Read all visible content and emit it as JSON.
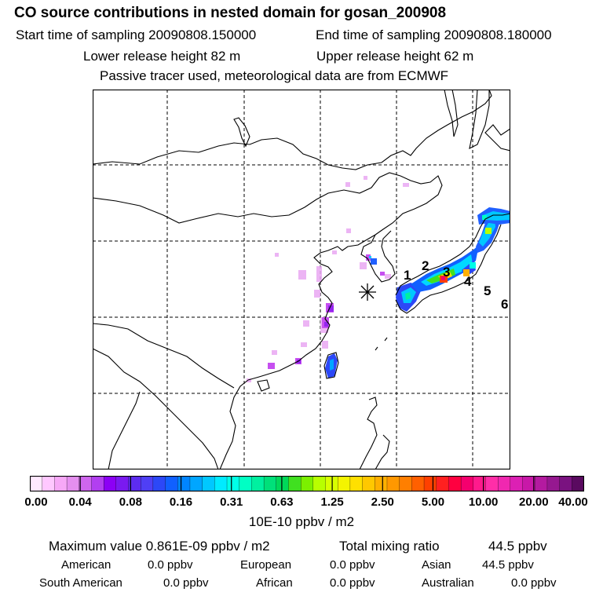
{
  "header": {
    "title": "CO  source contributions in nested domain for gosan_200908",
    "start_label": "Start time of sampling 20090808.150000",
    "end_label": "End time of sampling 20090808.180000",
    "lower_label": "Lower release height   82 m",
    "upper_label": "Upper release height   62 m",
    "tracer_note": "Passive tracer used, meteorological data are from ECMWF"
  },
  "map": {
    "receptor_marker": "asterisk-icon",
    "region_labels": [
      "1",
      "2",
      "3",
      "4",
      "5",
      "6"
    ]
  },
  "colorbar": {
    "tick_labels": [
      "0.00",
      "0.04",
      "0.08",
      "0.16",
      "0.31",
      "0.63",
      "1.25",
      "2.50",
      "5.00",
      "10.00",
      "20.00",
      "40.00"
    ],
    "colors": [
      "#ffe9ff",
      "#ffc8ff",
      "#f7a8f7",
      "#e58fef",
      "#cf66ee",
      "#b23ff0",
      "#8c00f5",
      "#7a1af0",
      "#5d2cf0",
      "#4f3ff5",
      "#2c48f7",
      "#1060ff",
      "#0085ff",
      "#00a6ff",
      "#00c8ff",
      "#00ebff",
      "#00ffe8",
      "#00ffc4",
      "#00f0a0",
      "#00e07a",
      "#00d85a",
      "#40e020",
      "#7cf000",
      "#b8ff00",
      "#d8ff00",
      "#f4f400",
      "#ffe000",
      "#ffc800",
      "#ffb000",
      "#ff9800",
      "#ff7f00",
      "#ff6000",
      "#ff4000",
      "#ff2020",
      "#ff0040",
      "#f5006e",
      "#ff1a8c",
      "#ff2ea8",
      "#f028b0",
      "#dc20b4",
      "#c818a8",
      "#b41aa0",
      "#961890",
      "#7a1280",
      "#5a0a60"
    ],
    "unit": "10E-10 ppbv / m2"
  },
  "stats": {
    "max_label": "Maximum value  0.861E-09 ppbv / m2",
    "total_label": "Total mixing ratio",
    "total_value": "44.5 ppbv"
  },
  "regions": [
    {
      "name": "American",
      "value": "0.0 ppbv"
    },
    {
      "name": "European",
      "value": "0.0 ppbv"
    },
    {
      "name": "Asian",
      "value": "44.5 ppbv"
    },
    {
      "name": "South American",
      "value": "0.0 ppbv"
    },
    {
      "name": "African",
      "value": "0.0 ppbv"
    },
    {
      "name": "Australian",
      "value": "0.0 ppbv"
    }
  ]
}
